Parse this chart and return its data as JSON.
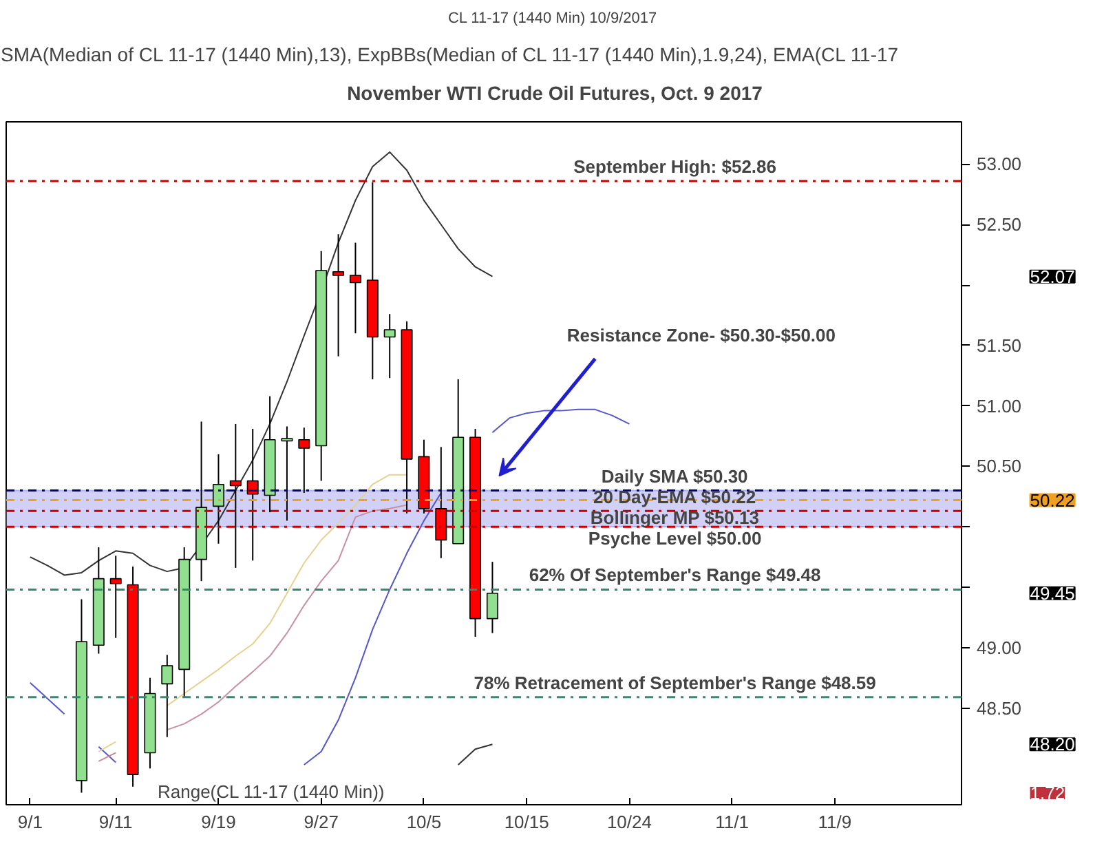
{
  "chart_data": {
    "type": "candlestick",
    "title": "November WTI Crude Oil Futures, Oct. 9 2017",
    "subtitle": "CL 11-17 (1440 Min)  10/9/2017",
    "annotations": [
      "SMA(Median of CL 11-17 (1440 Min),13), ExpBBs(Median of CL 11-17 (1440 Min),1.9,24), EMA(CL 11-17",
      "Range(CL 11-17 (1440 Min))",
      "1.72",
      "Resistance Zone- $50.30-$50.00",
      "52.07",
      "50.22",
      "49.45",
      "48.20"
    ],
    "categories": [
      "9/1",
      null,
      null,
      null,
      null,
      "9/11",
      null,
      null,
      null,
      null,
      null,
      "9/19",
      null,
      null,
      null,
      null,
      null,
      "9/27",
      null,
      null,
      null,
      null,
      null,
      "10/5",
      null,
      null,
      null,
      null,
      null,
      "10/15",
      null,
      null,
      null,
      null,
      null,
      "10/24",
      null,
      null,
      null,
      null,
      null,
      "11/1",
      null,
      null,
      null,
      null,
      null,
      "11/9",
      null,
      null,
      null,
      null,
      null,
      null,
      null
    ],
    "ohlc": [
      null,
      null,
      null,
      [
        47.9,
        49.4,
        47.8,
        49.05
      ],
      [
        49.02,
        49.83,
        48.95,
        49.57
      ],
      [
        49.57,
        49.76,
        49.08,
        49.53
      ],
      [
        49.52,
        49.67,
        47.85,
        47.95
      ],
      [
        48.13,
        48.75,
        48.0,
        48.62
      ],
      [
        48.7,
        48.94,
        48.26,
        48.85
      ],
      [
        48.82,
        49.83,
        48.59,
        49.73
      ],
      [
        49.73,
        50.87,
        49.55,
        50.16
      ],
      [
        50.17,
        50.6,
        49.86,
        50.35
      ],
      [
        50.38,
        50.85,
        49.66,
        50.34
      ],
      [
        50.38,
        50.81,
        49.72,
        50.27
      ],
      [
        50.26,
        51.08,
        50.12,
        50.72
      ],
      [
        50.71,
        50.83,
        50.05,
        50.73
      ],
      [
        50.72,
        50.82,
        50.28,
        50.65
      ],
      [
        50.67,
        52.28,
        50.38,
        52.12
      ],
      [
        52.11,
        52.42,
        51.41,
        52.08
      ],
      [
        52.08,
        52.35,
        51.6,
        52.02
      ],
      [
        52.04,
        52.85,
        51.22,
        51.57
      ],
      [
        51.57,
        51.76,
        51.23,
        51.63
      ],
      [
        51.63,
        51.7,
        50.11,
        50.56
      ],
      [
        50.58,
        50.72,
        50.11,
        50.15
      ],
      [
        50.15,
        50.66,
        49.74,
        49.89
      ],
      [
        49.86,
        51.22,
        49.86,
        50.74
      ],
      [
        50.74,
        50.81,
        49.09,
        49.24
      ],
      [
        49.24,
        49.71,
        49.12,
        49.45
      ],
      null,
      null,
      null,
      null,
      null,
      null,
      null,
      null,
      null,
      null,
      null,
      null,
      null,
      null,
      null,
      null,
      null,
      null,
      null,
      null,
      null,
      null,
      null,
      null,
      null,
      null,
      null
    ],
    "colors": [
      null,
      null,
      null,
      "#90e090",
      "#90e090",
      "#ff0000",
      "#ff0000",
      "#90e090",
      "#90e090",
      "#90e090",
      "#90e090",
      "#90e090",
      "#ff0000",
      "#ff0000",
      "#90e090",
      "#90e090",
      "#ff0000",
      "#90e090",
      "#ff0000",
      "#ff0000",
      "#ff0000",
      "#90e090",
      "#ff0000",
      "#ff0000",
      "#ff0000",
      "#90e090",
      "#ff0000",
      "#90e090",
      null,
      null,
      null,
      null,
      null,
      null,
      null,
      null,
      null,
      null,
      null,
      null,
      null,
      null,
      null,
      null,
      null,
      null,
      null,
      null,
      null,
      null,
      null,
      null,
      null,
      null,
      null
    ],
    "series": [
      {
        "type": "line",
        "color": "#333333",
        "values": [
          49.75,
          49.68,
          49.6,
          49.62,
          49.72,
          49.8,
          49.78,
          49.68,
          49.63,
          49.66,
          49.85,
          50.05,
          50.3,
          50.55,
          50.85,
          51.2,
          51.58,
          51.95,
          52.35,
          52.7,
          52.98,
          53.1,
          52.95,
          52.7,
          52.5,
          52.3,
          52.15,
          52.07,
          null,
          null,
          null,
          null,
          null,
          null,
          null,
          null,
          null,
          null,
          null,
          null,
          null,
          null,
          null,
          null,
          null,
          null,
          null,
          null,
          null,
          null,
          null,
          null,
          null,
          null,
          null
        ]
      },
      {
        "type": "line",
        "color": "#5555cc",
        "values": [
          48.71,
          48.58,
          48.45,
          null,
          48.18,
          48.05,
          null,
          null,
          null,
          null,
          null,
          null,
          null,
          null,
          null,
          null,
          null,
          null,
          null,
          null,
          null,
          null,
          null,
          null,
          null,
          null,
          null,
          null,
          null,
          null,
          null,
          null,
          null,
          null,
          null,
          null,
          null,
          null,
          null,
          null,
          null,
          null,
          null,
          null,
          null,
          null,
          null,
          null,
          null,
          null,
          null,
          null,
          null,
          null,
          null
        ]
      },
      {
        "type": "line",
        "color": "#5555cc",
        "values": [
          null,
          null,
          null,
          null,
          null,
          null,
          null,
          null,
          null,
          null,
          null,
          null,
          null,
          null,
          null,
          null,
          48.03,
          48.14,
          48.4,
          48.75,
          49.15,
          49.48,
          49.78,
          50.05,
          50.28,
          null,
          null,
          50.78,
          50.9,
          50.94,
          50.96,
          50.96,
          50.97,
          50.97,
          50.92,
          50.85,
          null,
          null,
          null,
          null,
          null,
          null,
          null,
          null,
          null,
          null,
          null,
          null,
          null,
          null,
          null,
          null,
          null,
          null,
          null
        ]
      },
      {
        "type": "line",
        "color": "#e8d090",
        "values": [
          null,
          null,
          null,
          null,
          48.14,
          48.22,
          null,
          null,
          48.52,
          48.62,
          48.72,
          48.82,
          48.93,
          49.03,
          49.2,
          49.45,
          49.7,
          49.89,
          50.03,
          50.18,
          50.35,
          50.43,
          50.43,
          null,
          null,
          null,
          null,
          null,
          null,
          null,
          null,
          null,
          null,
          null,
          null,
          null,
          null,
          null,
          null,
          null,
          null,
          null,
          null,
          null,
          null,
          null,
          null,
          null,
          null,
          null,
          null,
          null,
          null,
          null,
          null
        ]
      },
      {
        "type": "line",
        "color": "#c890a0",
        "values": [
          null,
          null,
          null,
          null,
          48.06,
          48.13,
          null,
          null,
          48.32,
          48.37,
          48.45,
          48.55,
          48.68,
          48.8,
          48.93,
          49.12,
          49.35,
          49.55,
          49.72,
          50.08,
          50.13,
          50.15,
          50.18,
          null,
          null,
          null,
          null,
          null,
          null,
          null,
          null,
          null,
          null,
          null,
          null,
          null,
          null,
          null,
          null,
          null,
          null,
          null,
          null,
          null,
          null,
          null,
          null,
          null,
          null,
          null,
          null,
          null,
          null,
          null,
          null
        ]
      },
      {
        "type": "line",
        "color": "#333333",
        "values": [
          null,
          null,
          null,
          null,
          null,
          null,
          null,
          null,
          null,
          null,
          null,
          null,
          null,
          null,
          null,
          null,
          null,
          null,
          null,
          null,
          null,
          null,
          null,
          null,
          null,
          48.03,
          48.16,
          48.2,
          null,
          null,
          null,
          null,
          null,
          null,
          null,
          null,
          null,
          null,
          null,
          null,
          null,
          null,
          null,
          null,
          null,
          null,
          null,
          null,
          null,
          null,
          null,
          null,
          null,
          null,
          null
        ]
      }
    ],
    "ylim": [
      47.7,
      53.35
    ],
    "yticks": [
      {
        "value": 48.5,
        "label": "48.50"
      },
      {
        "value": 49,
        "label": "49.00"
      },
      {
        "value": 49.5,
        "label": null
      },
      {
        "value": 50,
        "label": null
      },
      {
        "value": 50.5,
        "label": "50.50"
      },
      {
        "value": 51,
        "label": "51.00"
      },
      {
        "value": 51.5,
        "label": "51.50"
      },
      {
        "value": 52,
        "label": null
      },
      {
        "value": 52.5,
        "label": "52.50"
      },
      {
        "value": 53,
        "label": "53.00"
      }
    ],
    "ref_lines": [
      {
        "axis": "y",
        "value": 52.86,
        "label": "September High: $52.86",
        "color": "#cc0000",
        "line_style": "dashdot"
      },
      {
        "axis": "y",
        "value": 50.3,
        "label": "Daily SMA $50.30",
        "color": "#000080",
        "line_style": "dashdot"
      },
      {
        "axis": "y",
        "value": 50.22,
        "label": "20 Day-EMA $50.22",
        "color": "#f0a020",
        "line_style": "dashdot"
      },
      {
        "axis": "y",
        "value": 50.13,
        "label": "Bollinger MP $50.13",
        "color": "#cc0000",
        "line_style": "dashdot"
      },
      {
        "axis": "y",
        "value": 50.0,
        "label": "Psyche Level $50.00",
        "color": "#cc0000",
        "line_style": "dashdot"
      },
      {
        "axis": "y",
        "value": 49.48,
        "label": "62% Of September's Range $49.48",
        "color": "#2e8b70",
        "line_style": "dashdot"
      },
      {
        "axis": "y",
        "value": 48.59,
        "label": "78% Retracement of September's Range $48.59",
        "color": "#2e8b70",
        "line_style": "dashdot"
      }
    ],
    "bands": [
      {
        "axis": "y",
        "from": 50.0,
        "to": 50.3,
        "color": "#9999ee"
      }
    ],
    "grid": false
  }
}
